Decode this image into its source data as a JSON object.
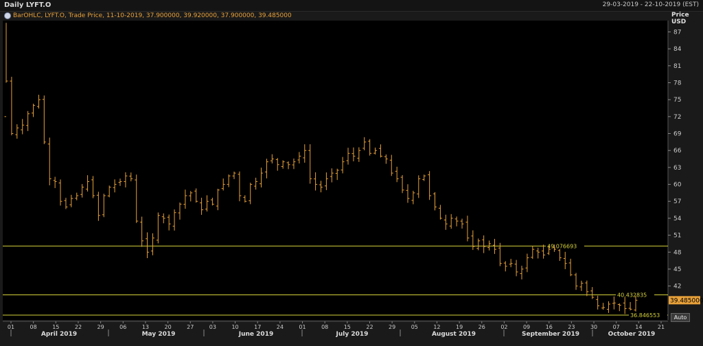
{
  "header": {
    "title": "Daily LYFT.O",
    "date_range": "29-03-2019 - 22-10-2019 (EST)"
  },
  "legend": {
    "text": "BarOHLC, LYFT.O, Trade Price,  11-10-2019, 37.900000, 39.920000, 37.900000, 39.485000",
    "color": "#e8a13a"
  },
  "axis": {
    "price_label": "Price",
    "currency_label": "USD",
    "auto_label": "Auto"
  },
  "chart_data": {
    "type": "bar",
    "subtype": "ohlc",
    "y_ticks": [
      42,
      45,
      48,
      51,
      54,
      57,
      60,
      63,
      66,
      69,
      72,
      75,
      78,
      81,
      84,
      87
    ],
    "ylim": [
      36,
      89
    ],
    "grid": false,
    "x_day_ticks": [
      "01",
      "08",
      "15",
      "22",
      "29",
      "06",
      "13",
      "20",
      "27",
      "03",
      "10",
      "17",
      "24",
      "01",
      "08",
      "15",
      "22",
      "29",
      "05",
      "12",
      "19",
      "26",
      "02",
      "09",
      "16",
      "23",
      "30",
      "07",
      "14",
      "21"
    ],
    "months": [
      "April 2019",
      "May 2019",
      "June 2019",
      "July 2019",
      "August 2019",
      "September 2019",
      "October 2019"
    ],
    "bar_color": "#e8a13a",
    "hlines": [
      {
        "value": 49.076693,
        "label": "49.076693",
        "color": "#d6d23a"
      },
      {
        "value": 40.432835,
        "label": "40.432835",
        "color": "#d6d23a"
      },
      {
        "value": 36.846553,
        "label": "36.846553",
        "color": "#d6d23a"
      }
    ],
    "last_price": {
      "value": 39.485,
      "label": "39.485000",
      "color": "#e8a13a"
    },
    "closes": [
      78.3,
      69.0,
      70.0,
      70.5,
      72.5,
      74.0,
      75.0,
      67.5,
      61.0,
      60.5,
      57.0,
      56.0,
      57.5,
      58.0,
      59.5,
      60.5,
      58.0,
      54.5,
      58.0,
      59.5,
      60.0,
      60.5,
      61.5,
      61.0,
      53.5,
      50.0,
      48.0,
      50.5,
      54.5,
      54.0,
      53.0,
      55.0,
      56.5,
      58.0,
      58.5,
      57.0,
      55.5,
      57.0,
      56.5,
      59.0,
      60.0,
      61.5,
      62.0,
      58.0,
      57.0,
      60.0,
      60.5,
      62.0,
      64.0,
      64.5,
      63.5,
      64.0,
      63.5,
      64.0,
      65.0,
      66.0,
      61.0,
      60.0,
      59.5,
      61.0,
      62.0,
      62.5,
      64.0,
      65.5,
      65.0,
      66.0,
      67.5,
      65.5,
      66.0,
      65.0,
      64.5,
      62.0,
      61.0,
      59.0,
      57.5,
      58.5,
      61.0,
      61.5,
      58.0,
      56.0,
      54.0,
      53.0,
      54.0,
      53.5,
      53.0,
      50.5,
      49.0,
      50.0,
      49.0,
      49.5,
      48.5,
      46.0,
      45.5,
      46.0,
      44.5,
      45.0,
      47.0,
      48.5,
      48.0,
      47.5,
      48.5,
      48.5,
      47.0,
      46.0,
      44.0,
      42.0,
      42.5,
      41.0,
      40.0,
      38.5,
      38.2,
      38.8,
      39.0,
      38.6,
      38.0,
      37.9,
      39.485
    ],
    "first_bar": {
      "open": 72.0,
      "high": 88.6,
      "low": 78.0,
      "close": 78.3
    }
  }
}
